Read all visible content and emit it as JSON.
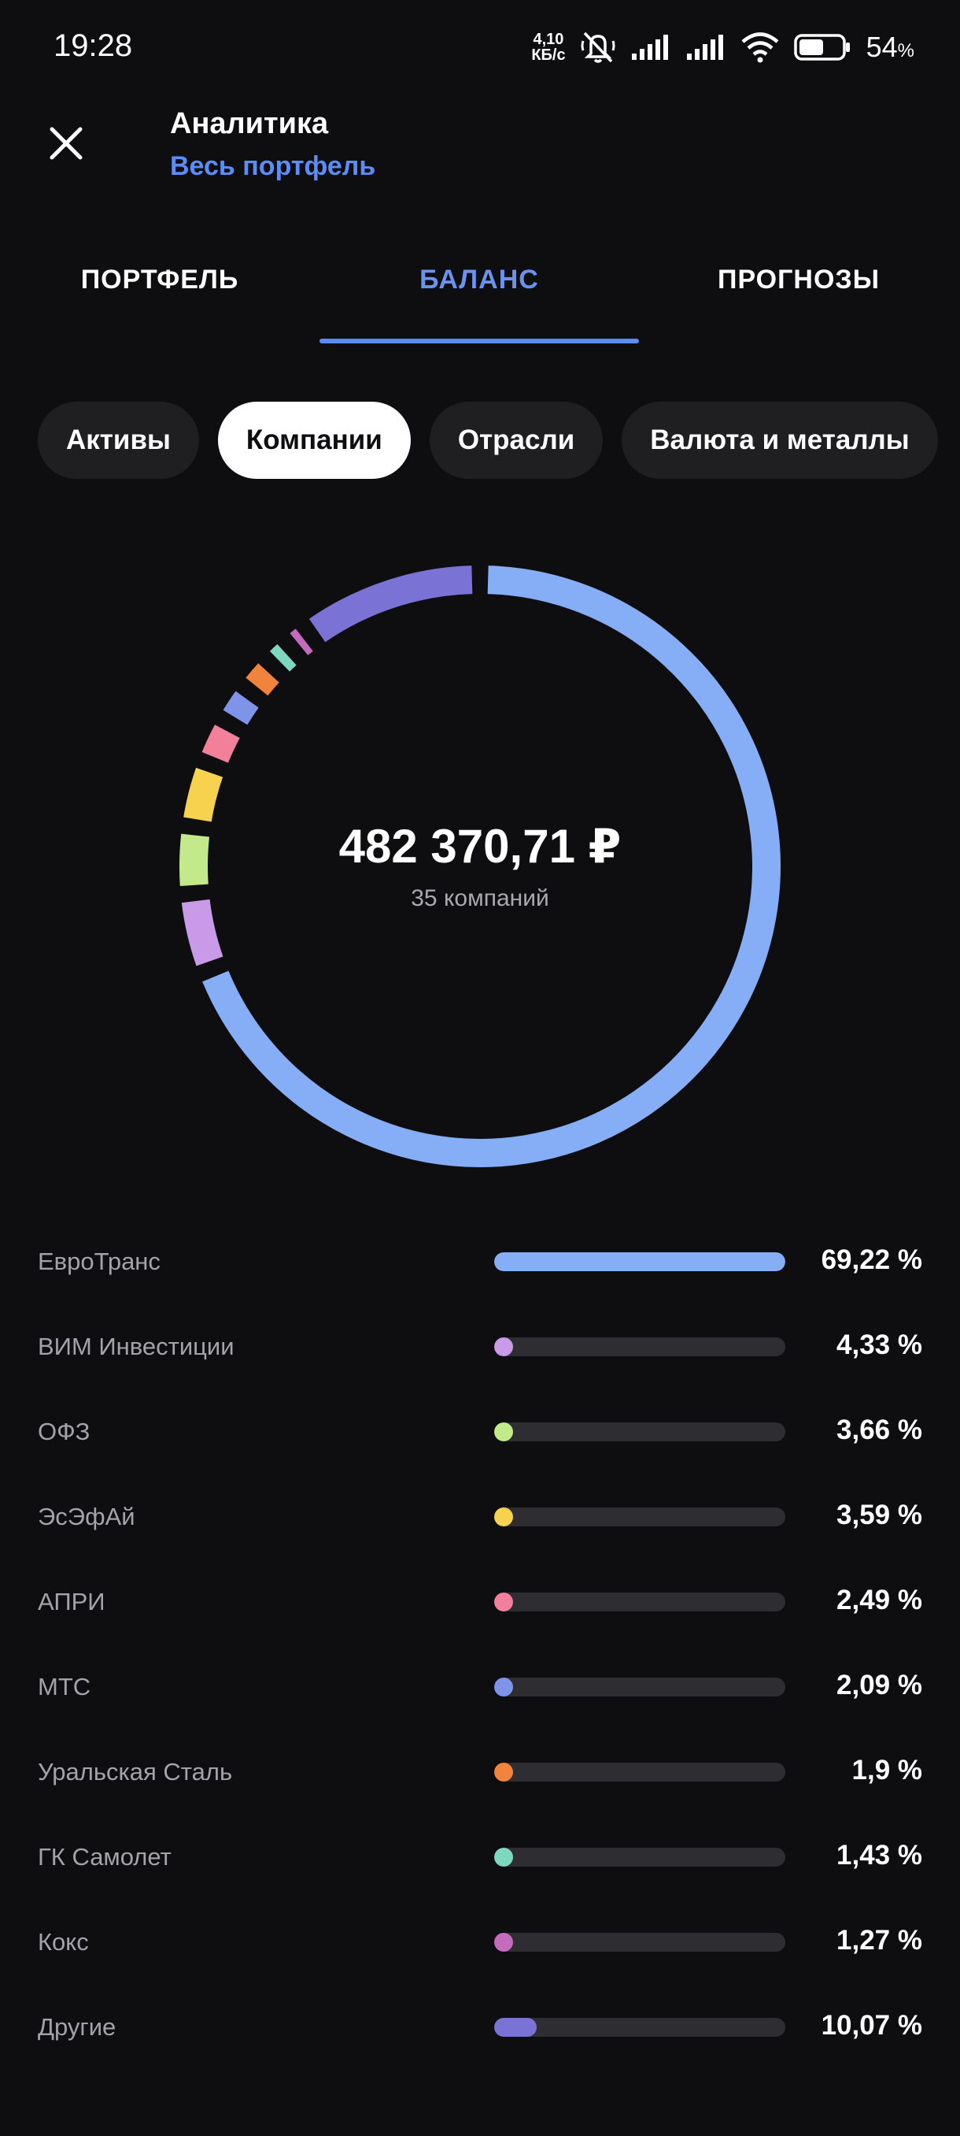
{
  "status_bar": {
    "time": "19:28",
    "net_speed_value": "4,10",
    "net_speed_unit": "КБ/с",
    "battery_level": "54",
    "battery_unit": "%",
    "icons": [
      "mute-icon",
      "signal-icon",
      "signal-icon",
      "wifi-icon",
      "battery-icon"
    ]
  },
  "header": {
    "title": "Аналитика",
    "subtitle": "Весь портфель",
    "close_icon": "close-icon"
  },
  "tabs": [
    {
      "label": "ПОРТФЕЛЬ",
      "active": false
    },
    {
      "label": "БАЛАНС",
      "active": true
    },
    {
      "label": "ПРОГНОЗЫ",
      "active": false
    }
  ],
  "chips": [
    {
      "label": "Активы",
      "selected": false
    },
    {
      "label": "Компании",
      "selected": true
    },
    {
      "label": "Отрасли",
      "selected": false
    },
    {
      "label": "Валюта и металлы",
      "selected": false
    }
  ],
  "summary": {
    "total": "482 370,71 ₽",
    "caption": "35 компаний"
  },
  "colors": {
    "accent": "#5b8df5",
    "background": "#0e0e10"
  },
  "chart_data": {
    "type": "pie",
    "title": "",
    "categories": [
      "ЕвроТранс",
      "ВИМ Инвестиции",
      "ОФЗ",
      "ЭсЭфАй",
      "АПРИ",
      "МТС",
      "Уральская Сталь",
      "ГК Самолет",
      "Кокс",
      "Другие"
    ],
    "values": [
      69.22,
      4.33,
      3.66,
      3.59,
      2.49,
      2.09,
      1.9,
      1.43,
      1.27,
      10.07
    ],
    "colors": [
      "#86aef7",
      "#c89ae8",
      "#c3ea8a",
      "#f7d24f",
      "#f3809a",
      "#7e94e8",
      "#f0843c",
      "#7ed8c0",
      "#c46bbd",
      "#7b72d6"
    ]
  },
  "companies": [
    {
      "name": "ЕвроТранс",
      "percent_label": "69,22 %",
      "value": 69.22,
      "color": "#86aef7"
    },
    {
      "name": "ВИМ Инвестиции",
      "percent_label": "4,33 %",
      "value": 4.33,
      "color": "#c89ae8"
    },
    {
      "name": "ОФЗ",
      "percent_label": "3,66 %",
      "value": 3.66,
      "color": "#c3ea8a"
    },
    {
      "name": "ЭсЭфАй",
      "percent_label": "3,59 %",
      "value": 3.59,
      "color": "#f7d24f"
    },
    {
      "name": "АПРИ",
      "percent_label": "2,49 %",
      "value": 2.49,
      "color": "#f3809a"
    },
    {
      "name": "МТС",
      "percent_label": "2,09 %",
      "value": 2.09,
      "color": "#7e94e8"
    },
    {
      "name": "Уральская Сталь",
      "percent_label": "1,9 %",
      "value": 1.9,
      "color": "#f0843c"
    },
    {
      "name": "ГК Самолет",
      "percent_label": "1,43 %",
      "value": 1.43,
      "color": "#7ed8c0"
    },
    {
      "name": "Кокс",
      "percent_label": "1,27 %",
      "value": 1.27,
      "color": "#c46bbd"
    },
    {
      "name": "Другие",
      "percent_label": "10,07 %",
      "value": 10.07,
      "color": "#7b72d6"
    }
  ]
}
